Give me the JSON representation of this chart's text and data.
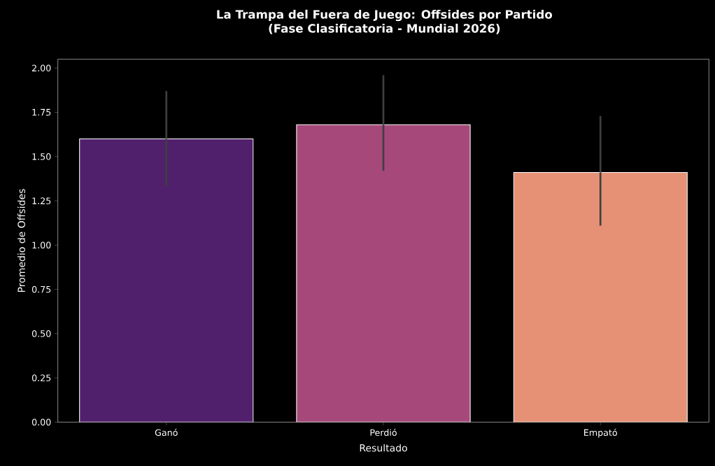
{
  "chart_data": {
    "type": "bar",
    "title": "La Trampa del Fuera de Juego: Offsides por Partido",
    "subtitle": "(Fase Clasificatoria - Mundial 2026)",
    "xlabel": "Resultado",
    "ylabel": "Promedio de Offsides",
    "categories": [
      "Ganó",
      "Perdió",
      "Empató"
    ],
    "values": [
      1.6,
      1.68,
      1.41
    ],
    "errors": [
      [
        1.33,
        1.87
      ],
      [
        1.42,
        1.96
      ],
      [
        1.11,
        1.73
      ]
    ],
    "colors": [
      "#51206d",
      "#a6497a",
      "#e69175"
    ],
    "ylim": [
      0,
      2.05
    ],
    "yticks": [
      {
        "value": 0,
        "label": "0.00"
      },
      {
        "value": 0.25,
        "label": "0.25"
      },
      {
        "value": 0.5,
        "label": "0.50"
      },
      {
        "value": 0.75,
        "label": "0.75"
      },
      {
        "value": 1,
        "label": "1.00"
      },
      {
        "value": 1.25,
        "label": "1.25"
      },
      {
        "value": 1.5,
        "label": "1.50"
      },
      {
        "value": 1.75,
        "label": "1.75"
      },
      {
        "value": 2,
        "label": "2.00"
      }
    ],
    "grid": false
  }
}
